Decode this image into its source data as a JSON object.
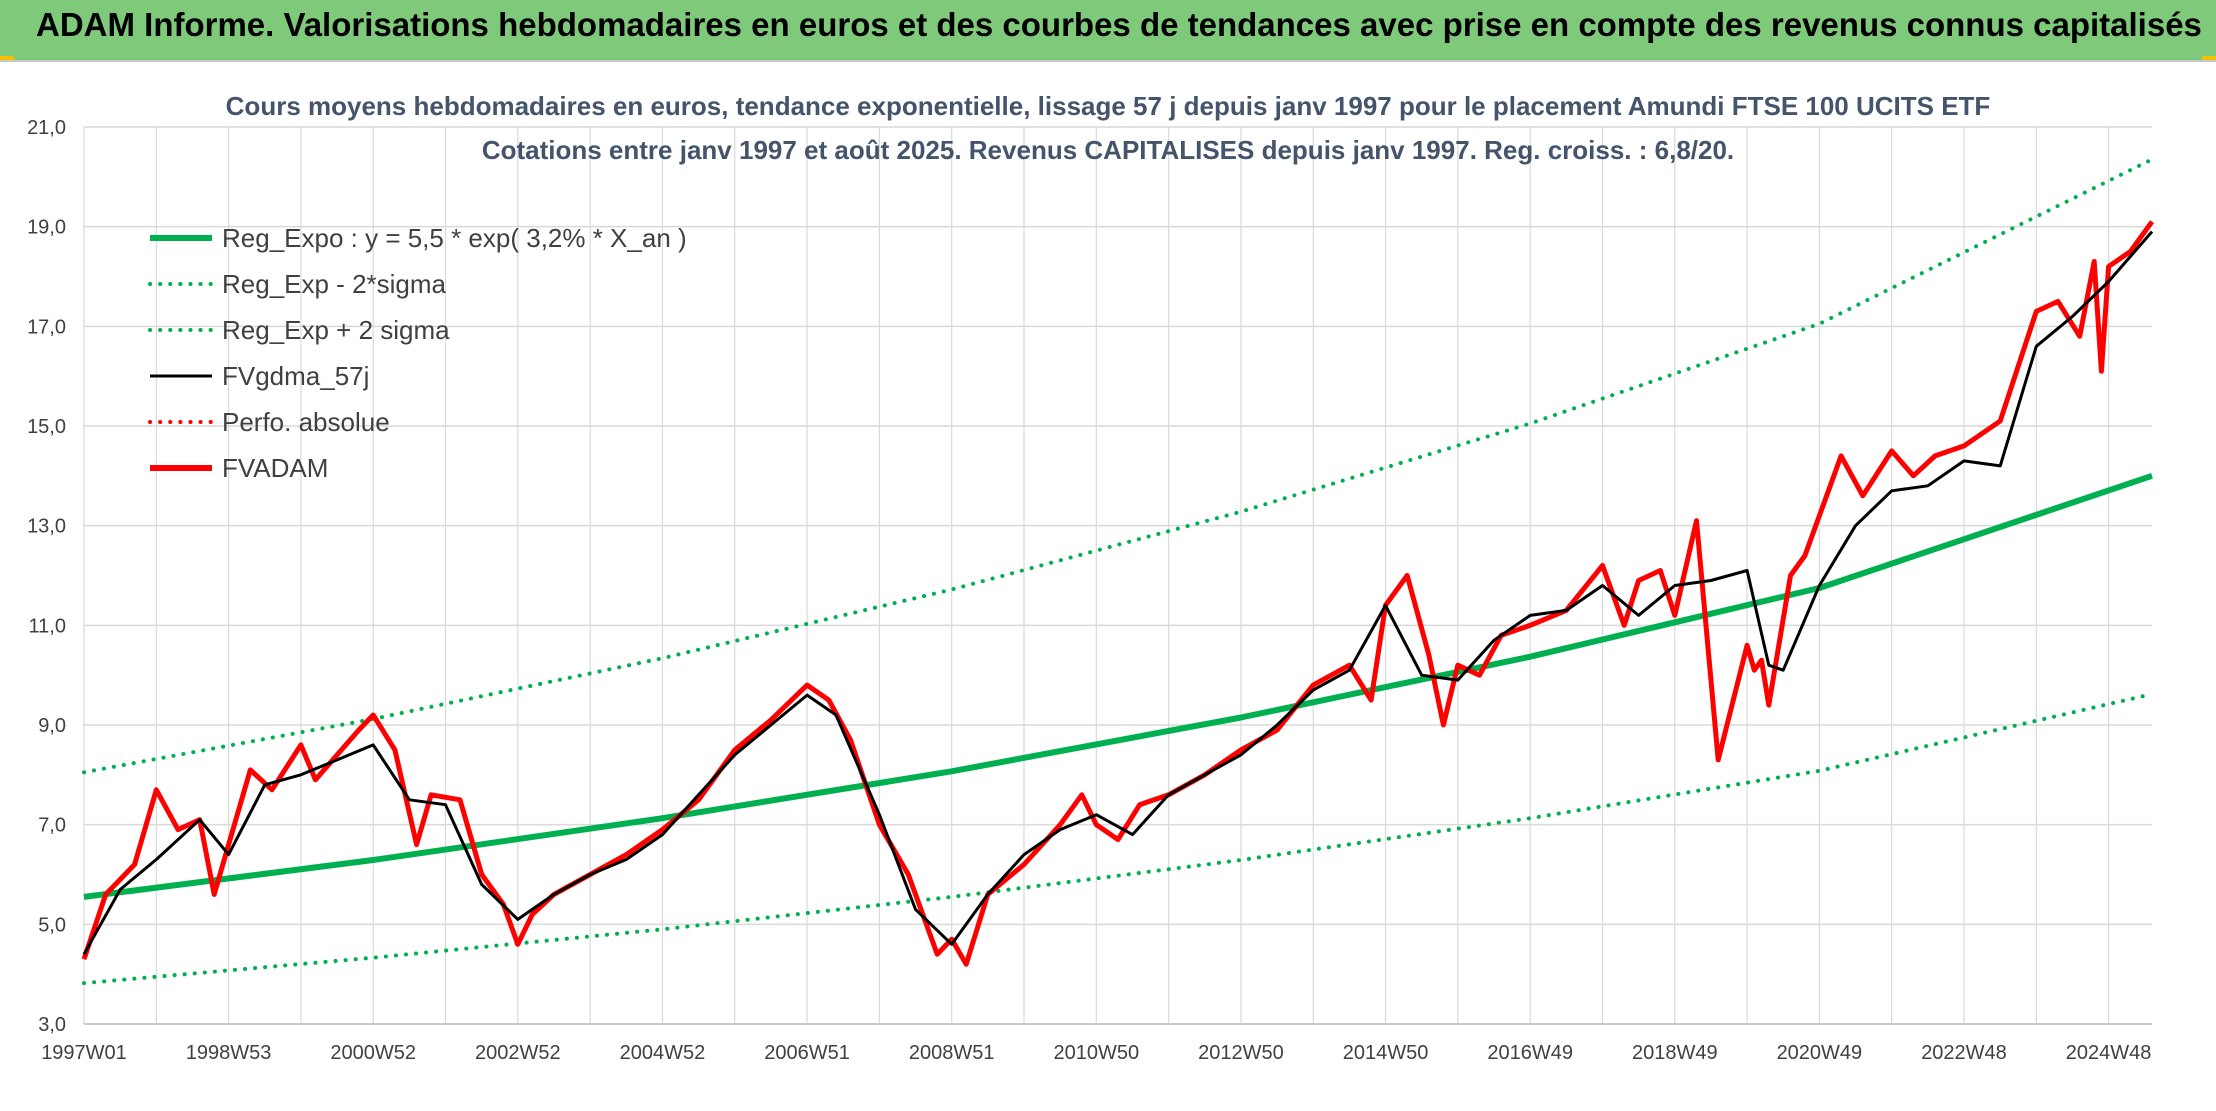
{
  "banner_title": "ADAM Informe. Valorisations hebdomadaires en euros et des courbes de tendances avec prise en compte des revenus connus capitalisés",
  "colors": {
    "banner": "#7fc97a",
    "accent_edge": "#f4c000",
    "regression": "#00b050",
    "gdma": "#000000",
    "adam": "#ff0000",
    "title_text": "#44546a",
    "grid": "#d9d9d9"
  },
  "chart_data": {
    "type": "line",
    "title_line1": "Cours moyens hebdomadaires en euros, tendance exponentielle, lissage 57 j depuis janv 1997 pour le placement Amundi FTSE 100 UCITS ETF",
    "title_line2": "Cotations entre janv 1997 et août 2025. Revenus CAPITALISES depuis janv 1997. Reg. croiss. : 6,8/20.",
    "ylim": [
      3,
      21
    ],
    "yticks": [
      "3,0",
      "5,0",
      "7,0",
      "9,0",
      "11,0",
      "13,0",
      "15,0",
      "17,0",
      "19,0",
      "21,0"
    ],
    "xlim": [
      1997.0,
      2025.6
    ],
    "xticks": [
      {
        "label": "1997W01",
        "x": 1997.0
      },
      {
        "label": "1998W53",
        "x": 1999.0
      },
      {
        "label": "2000W52",
        "x": 2001.0
      },
      {
        "label": "2002W52",
        "x": 2003.0
      },
      {
        "label": "2004W52",
        "x": 2005.0
      },
      {
        "label": "2006W51",
        "x": 2007.0
      },
      {
        "label": "2008W51",
        "x": 2009.0
      },
      {
        "label": "2010W50",
        "x": 2011.0
      },
      {
        "label": "2012W50",
        "x": 2013.0
      },
      {
        "label": "2014W50",
        "x": 2015.0
      },
      {
        "label": "2016W49",
        "x": 2017.0
      },
      {
        "label": "2018W49",
        "x": 2019.0
      },
      {
        "label": "2020W49",
        "x": 2021.0
      },
      {
        "label": "2022W48",
        "x": 2023.0
      },
      {
        "label": "2024W48",
        "x": 2025.0
      }
    ],
    "legend": [
      {
        "name": "Reg_Expo : y = 5,5 * exp( 3,2% *  X_an )",
        "color": "#00b050",
        "style": "solid-thick"
      },
      {
        "name": "Reg_Exp - 2*sigma",
        "color": "#00b050",
        "style": "dotted"
      },
      {
        "name": "Reg_Exp + 2 sigma",
        "color": "#00b050",
        "style": "dotted"
      },
      {
        "name": "FVgdma_57j",
        "color": "#000000",
        "style": "solid"
      },
      {
        "name": "Perfo. absolue",
        "color": "#ff0000",
        "style": "dotted"
      },
      {
        "name": "FVADAM",
        "color": "#ff0000",
        "style": "solid-thick"
      }
    ],
    "series": [
      {
        "name": "Reg_Expo : y = 5,5 * exp( 3,2% *  X_an )",
        "x": [
          1997.0,
          2001.0,
          2005.0,
          2009.0,
          2013.0,
          2017.0,
          2021.0,
          2025.6
        ],
        "y": [
          5.55,
          6.29,
          7.13,
          8.07,
          9.15,
          10.37,
          11.75,
          14.0
        ]
      },
      {
        "name": "Reg_Exp - 2*sigma",
        "x": [
          1997.0,
          2001.0,
          2005.0,
          2009.0,
          2013.0,
          2017.0,
          2021.0,
          2025.6
        ],
        "y": [
          3.82,
          4.33,
          4.9,
          5.55,
          6.29,
          7.13,
          8.08,
          9.62
        ]
      },
      {
        "name": "Reg_Exp + 2 sigma",
        "x": [
          1997.0,
          2001.0,
          2005.0,
          2009.0,
          2013.0,
          2017.0,
          2021.0,
          2025.6
        ],
        "y": [
          8.05,
          9.12,
          10.34,
          11.72,
          13.28,
          15.05,
          17.05,
          20.35
        ]
      },
      {
        "name": "FVgdma_57j",
        "x": [
          1997.0,
          1997.5,
          1998.0,
          1998.6,
          1999.0,
          1999.5,
          2000.0,
          2000.5,
          2001.0,
          2001.5,
          2002.0,
          2002.5,
          2003.0,
          2003.5,
          2004.0,
          2004.5,
          2005.0,
          2005.5,
          2006.0,
          2006.5,
          2007.0,
          2007.4,
          2008.0,
          2008.5,
          2009.0,
          2009.5,
          2010.0,
          2010.5,
          2011.0,
          2011.5,
          2012.0,
          2012.5,
          2013.0,
          2013.5,
          2014.0,
          2014.5,
          2015.0,
          2015.5,
          2016.0,
          2016.5,
          2017.0,
          2017.5,
          2018.0,
          2018.5,
          2019.0,
          2019.5,
          2020.0,
          2020.3,
          2020.5,
          2021.0,
          2021.5,
          2022.0,
          2022.5,
          2023.0,
          2023.5,
          2024.0,
          2024.5,
          2025.0,
          2025.6
        ],
        "y": [
          4.4,
          5.7,
          6.3,
          7.1,
          6.4,
          7.8,
          8.0,
          8.3,
          8.6,
          7.5,
          7.4,
          5.8,
          5.1,
          5.6,
          6.0,
          6.3,
          6.8,
          7.6,
          8.4,
          9.0,
          9.6,
          9.2,
          7.2,
          5.3,
          4.6,
          5.6,
          6.4,
          6.9,
          7.2,
          6.8,
          7.6,
          8.0,
          8.4,
          9.0,
          9.7,
          10.1,
          11.4,
          10.0,
          9.9,
          10.7,
          11.2,
          11.3,
          11.8,
          11.2,
          11.8,
          11.9,
          12.1,
          10.2,
          10.1,
          11.8,
          13.0,
          13.7,
          13.8,
          14.3,
          14.2,
          16.6,
          17.2,
          17.9,
          18.9
        ]
      },
      {
        "name": "FVADAM",
        "x": [
          1997.0,
          1997.3,
          1997.7,
          1998.0,
          1998.3,
          1998.6,
          1998.8,
          1999.0,
          1999.3,
          1999.6,
          2000.0,
          2000.2,
          2000.5,
          2000.8,
          2001.0,
          2001.3,
          2001.6,
          2001.8,
          2002.2,
          2002.5,
          2002.8,
          2003.0,
          2003.2,
          2003.5,
          2004.0,
          2004.5,
          2005.0,
          2005.5,
          2006.0,
          2006.5,
          2007.0,
          2007.3,
          2007.6,
          2008.0,
          2008.4,
          2008.8,
          2009.0,
          2009.2,
          2009.5,
          2010.0,
          2010.5,
          2010.8,
          2011.0,
          2011.3,
          2011.6,
          2012.0,
          2012.5,
          2013.0,
          2013.5,
          2014.0,
          2014.5,
          2014.8,
          2015.0,
          2015.3,
          2015.6,
          2015.8,
          2016.0,
          2016.3,
          2016.6,
          2017.0,
          2017.5,
          2018.0,
          2018.3,
          2018.5,
          2018.8,
          2019.0,
          2019.3,
          2019.6,
          2020.0,
          2020.1,
          2020.2,
          2020.3,
          2020.6,
          2020.8,
          2021.0,
          2021.3,
          2021.6,
          2022.0,
          2022.3,
          2022.6,
          2023.0,
          2023.5,
          2024.0,
          2024.3,
          2024.6,
          2024.8,
          2024.9,
          2025.0,
          2025.3,
          2025.6
        ],
        "y": [
          4.3,
          5.6,
          6.2,
          7.7,
          6.9,
          7.1,
          5.6,
          6.6,
          8.1,
          7.7,
          8.6,
          7.9,
          8.4,
          8.9,
          9.2,
          8.5,
          6.6,
          7.6,
          7.5,
          6.0,
          5.4,
          4.6,
          5.2,
          5.6,
          6.0,
          6.4,
          6.9,
          7.5,
          8.5,
          9.1,
          9.8,
          9.5,
          8.7,
          7.0,
          6.0,
          4.4,
          4.7,
          4.2,
          5.6,
          6.2,
          7.0,
          7.6,
          7.0,
          6.7,
          7.4,
          7.6,
          8.0,
          8.5,
          8.9,
          9.8,
          10.2,
          9.5,
          11.4,
          12.0,
          10.4,
          9.0,
          10.2,
          10.0,
          10.8,
          11.0,
          11.3,
          12.2,
          11.0,
          11.9,
          12.1,
          11.2,
          13.1,
          8.3,
          10.6,
          10.1,
          10.3,
          9.4,
          12.0,
          12.4,
          13.2,
          14.4,
          13.6,
          14.5,
          14.0,
          14.4,
          14.6,
          15.1,
          17.3,
          17.5,
          16.8,
          18.3,
          16.1,
          18.2,
          18.5,
          19.1
        ]
      }
    ]
  }
}
